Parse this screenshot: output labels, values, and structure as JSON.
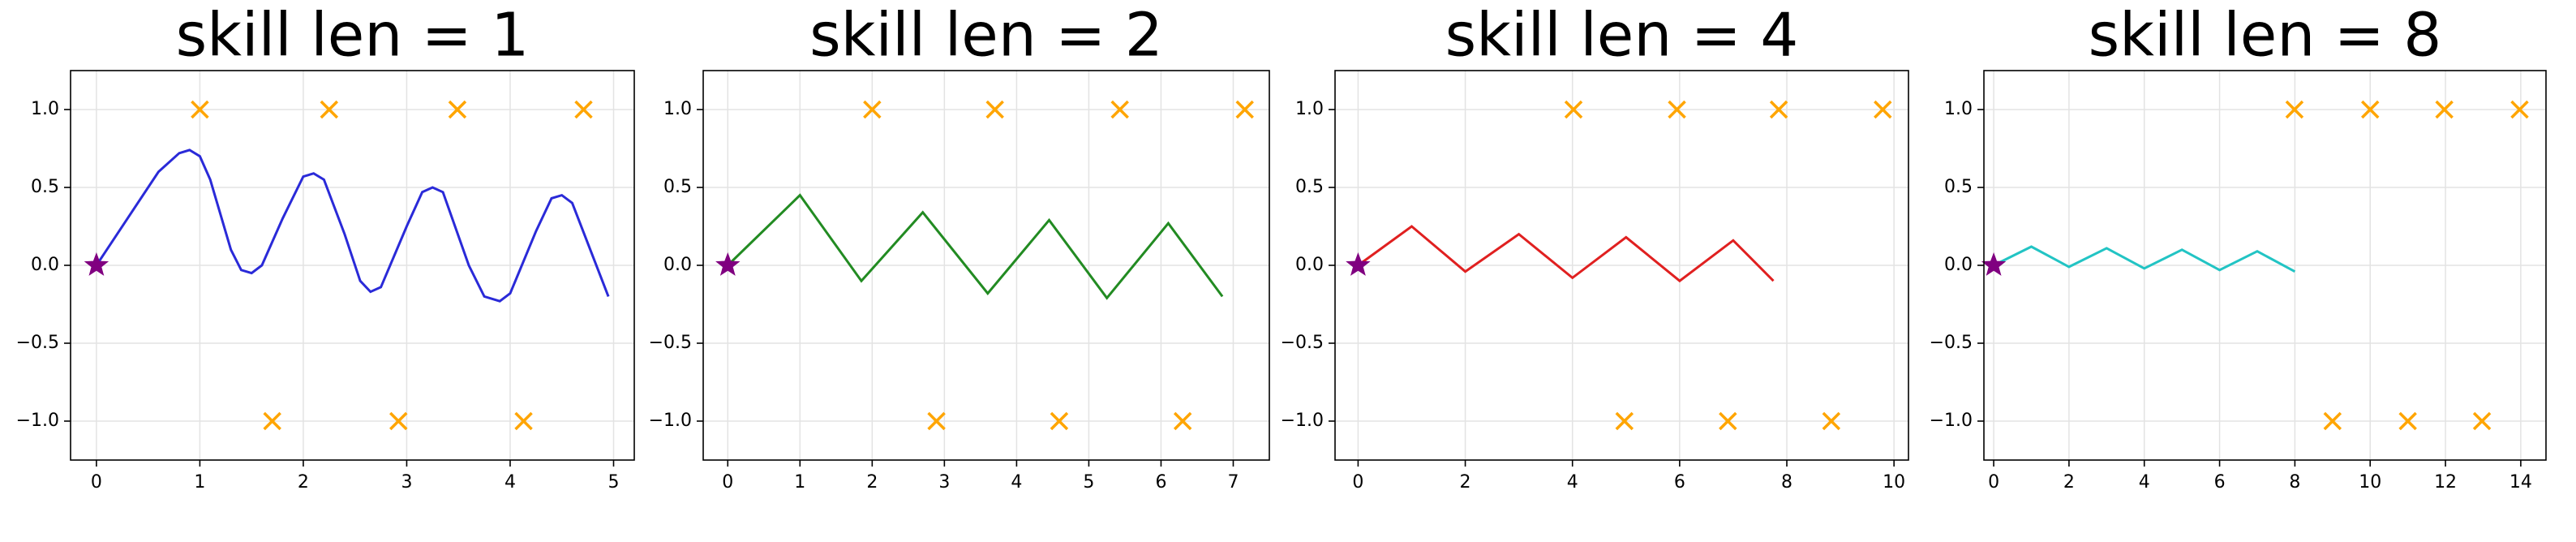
{
  "chart_data": [
    {
      "type": "line",
      "title": "skill len = 1",
      "grid": true,
      "xlim": [
        -0.25,
        5.2
      ],
      "ylim": [
        -1.25,
        1.25
      ],
      "xticks": [
        0,
        1,
        2,
        3,
        4,
        5
      ],
      "yticks": [
        {
          "value": -1,
          "label": "−1.0"
        },
        {
          "value": -0.5,
          "label": "−0.5"
        },
        {
          "value": 0,
          "label": "0.0"
        },
        {
          "value": 0.5,
          "label": "0.5"
        },
        {
          "value": 1,
          "label": "1.0"
        }
      ],
      "series": [
        {
          "color": "#2a2ad8",
          "x": [
            0,
            0.3,
            0.6,
            0.8,
            0.9,
            1.0,
            1.1,
            1.3,
            1.4,
            1.5,
            1.6,
            1.8,
            2.0,
            2.1,
            2.2,
            2.4,
            2.55,
            2.65,
            2.75,
            3.0,
            3.15,
            3.25,
            3.35,
            3.6,
            3.75,
            3.9,
            4.0,
            4.25,
            4.4,
            4.5,
            4.6,
            4.95
          ],
          "values": [
            0,
            0.3,
            0.6,
            0.72,
            0.74,
            0.7,
            0.55,
            0.1,
            -0.03,
            -0.05,
            0.0,
            0.3,
            0.57,
            0.59,
            0.55,
            0.2,
            -0.1,
            -0.17,
            -0.14,
            0.25,
            0.47,
            0.5,
            0.47,
            0.0,
            -0.2,
            -0.23,
            -0.18,
            0.22,
            0.43,
            0.45,
            0.4,
            -0.2
          ]
        }
      ],
      "goals": {
        "color": "#ffa500",
        "x": [
          1.0,
          2.25,
          3.49,
          4.71,
          1.7,
          2.92,
          4.13
        ],
        "values": [
          1,
          1,
          1,
          1,
          -1,
          -1,
          -1
        ]
      },
      "start": {
        "color": "#800080",
        "x": [
          0
        ],
        "values": [
          0
        ]
      }
    },
    {
      "type": "line",
      "title": "skill len = 2",
      "grid": true,
      "xlim": [
        -0.34,
        7.5
      ],
      "ylim": [
        -1.25,
        1.25
      ],
      "xticks": [
        0,
        1,
        2,
        3,
        4,
        5,
        6,
        7
      ],
      "yticks": [
        {
          "value": -1,
          "label": "−1.0"
        },
        {
          "value": -0.5,
          "label": "−0.5"
        },
        {
          "value": 0,
          "label": "0.0"
        },
        {
          "value": 0.5,
          "label": "0.5"
        },
        {
          "value": 1,
          "label": "1.0"
        }
      ],
      "series": [
        {
          "color": "#228b22",
          "x": [
            0,
            1.0,
            1.85,
            2.7,
            3.6,
            4.45,
            5.25,
            6.1,
            6.85
          ],
          "values": [
            0,
            0.45,
            -0.1,
            0.34,
            -0.18,
            0.29,
            -0.21,
            0.27,
            -0.2
          ]
        }
      ],
      "goals": {
        "color": "#ffa500",
        "x": [
          2.0,
          3.7,
          5.43,
          7.16,
          2.89,
          4.59,
          6.3
        ],
        "values": [
          1,
          1,
          1,
          1,
          -1,
          -1,
          -1
        ]
      },
      "start": {
        "color": "#800080",
        "x": [
          0
        ],
        "values": [
          0
        ]
      }
    },
    {
      "type": "line",
      "title": "skill len = 4",
      "grid": true,
      "xlim": [
        -0.43,
        10.27
      ],
      "ylim": [
        -1.25,
        1.25
      ],
      "xticks": [
        0,
        2,
        4,
        6,
        8,
        10
      ],
      "yticks": [
        {
          "value": -1,
          "label": "−1.0"
        },
        {
          "value": -0.5,
          "label": "−0.5"
        },
        {
          "value": 0,
          "label": "0.0"
        },
        {
          "value": 0.5,
          "label": "0.5"
        },
        {
          "value": 1,
          "label": "1.0"
        }
      ],
      "series": [
        {
          "color": "#e02020",
          "x": [
            0,
            1,
            2,
            3,
            4,
            5,
            6,
            7,
            7.75
          ],
          "values": [
            0,
            0.25,
            -0.04,
            0.2,
            -0.08,
            0.18,
            -0.1,
            0.16,
            -0.1
          ]
        }
      ],
      "goals": {
        "color": "#ffa500",
        "x": [
          4.02,
          5.95,
          7.85,
          9.79,
          4.97,
          6.9,
          8.83
        ],
        "values": [
          1,
          1,
          1,
          1,
          -1,
          -1,
          -1
        ]
      },
      "start": {
        "color": "#800080",
        "x": [
          0
        ],
        "values": [
          0
        ]
      }
    },
    {
      "type": "line",
      "title": "skill len = 8",
      "grid": true,
      "xlim": [
        -0.26,
        14.67
      ],
      "ylim": [
        -1.25,
        1.25
      ],
      "xticks": [
        0,
        2,
        4,
        6,
        8,
        10,
        12,
        14
      ],
      "yticks": [
        {
          "value": -1,
          "label": "−1.0"
        },
        {
          "value": -0.5,
          "label": "−0.5"
        },
        {
          "value": 0,
          "label": "0.0"
        },
        {
          "value": 0.5,
          "label": "0.5"
        },
        {
          "value": 1,
          "label": "1.0"
        }
      ],
      "series": [
        {
          "color": "#22c4c4",
          "x": [
            0,
            1,
            2,
            3,
            4,
            5,
            6,
            7,
            8
          ],
          "values": [
            0,
            0.12,
            -0.01,
            0.11,
            -0.02,
            0.1,
            -0.03,
            0.09,
            -0.04
          ]
        }
      ],
      "goals": {
        "color": "#ffa500",
        "x": [
          7.99,
          10.0,
          11.97,
          13.97,
          9.0,
          11.0,
          12.97
        ],
        "values": [
          1,
          1,
          1,
          1,
          -1,
          -1,
          -1
        ]
      },
      "start": {
        "color": "#800080",
        "x": [
          0
        ],
        "values": [
          0
        ]
      }
    }
  ]
}
